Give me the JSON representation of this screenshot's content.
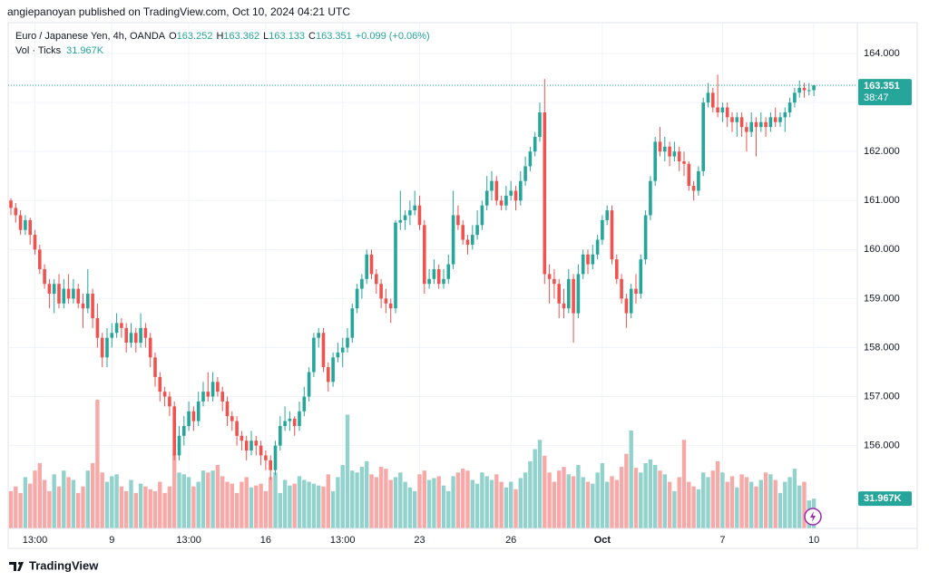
{
  "chart_data": {
    "type": "candlestick",
    "attribution": "angiepanoyan published on TradingView.com, Oct 10, 2024 04:21 UTC",
    "title": "Euro / Japanese Yen, 4h, OANDA",
    "ohlc_legend": [
      {
        "key": "O",
        "value": "163.252"
      },
      {
        "key": "H",
        "value": "163.362"
      },
      {
        "key": "L",
        "value": "163.133"
      },
      {
        "key": "C",
        "value": "163.351"
      }
    ],
    "change": "+0.099 (+0.06%)",
    "volume_title": "Vol · Ticks",
    "volume_legend": "31.967K",
    "price_tag": {
      "price": "163.351",
      "countdown": "38:47"
    },
    "volume_tag": "31.967K",
    "footer": "TradingView",
    "up_color": "#26a69a",
    "down_color": "#ef5350",
    "volume_up_color": "#92d2cc",
    "volume_down_color": "#f7a9a7",
    "grid": true,
    "ylim": [
      154.31,
      164.63
    ],
    "yticks": [
      {
        "value": 156,
        "label": "156.000"
      },
      {
        "value": 157,
        "label": "157.000"
      },
      {
        "value": 158,
        "label": "158.000"
      },
      {
        "value": 159,
        "label": "159.000"
      },
      {
        "value": 160,
        "label": "160.000"
      },
      {
        "value": 161,
        "label": "161.000"
      },
      {
        "value": 162,
        "label": "162.000"
      },
      {
        "value": 163,
        "label": "163.000"
      },
      {
        "value": 164,
        "label": "164.000"
      }
    ],
    "categories": [
      null,
      null,
      null,
      null,
      null,
      "13:00",
      null,
      null,
      null,
      null,
      null,
      null,
      null,
      null,
      null,
      null,
      null,
      null,
      null,
      null,
      null,
      "9",
      null,
      null,
      null,
      null,
      null,
      null,
      null,
      null,
      null,
      null,
      null,
      null,
      null,
      null,
      null,
      "13:00",
      null,
      null,
      null,
      null,
      null,
      null,
      null,
      null,
      null,
      null,
      null,
      null,
      null,
      null,
      null,
      "16",
      null,
      null,
      null,
      null,
      null,
      null,
      null,
      null,
      null,
      null,
      null,
      null,
      null,
      null,
      null,
      "13:00",
      null,
      null,
      null,
      null,
      null,
      null,
      null,
      null,
      null,
      null,
      null,
      null,
      null,
      null,
      null,
      "23",
      null,
      null,
      null,
      null,
      null,
      null,
      null,
      null,
      null,
      null,
      null,
      null,
      null,
      null,
      null,
      null,
      null,
      null,
      "26",
      null,
      null,
      null,
      null,
      null,
      null,
      null,
      null,
      null,
      null,
      null,
      null,
      null,
      null,
      null,
      null,
      null,
      null,
      "Oct",
      null,
      null,
      null,
      null,
      null,
      null,
      null,
      null,
      null,
      null,
      null,
      null,
      null,
      null,
      null,
      null,
      null,
      null,
      null,
      null,
      null,
      null,
      null,
      null,
      "7",
      null,
      null,
      null,
      null,
      null,
      null,
      null,
      null,
      null,
      null,
      null,
      null,
      null,
      null,
      null,
      null,
      null,
      null,
      "10"
    ],
    "candles": [
      [
        161.0,
        161.05,
        160.7,
        160.85
      ],
      [
        160.85,
        160.95,
        160.55,
        160.7
      ],
      [
        160.7,
        160.8,
        160.3,
        160.4
      ],
      [
        160.4,
        160.7,
        160.3,
        160.6
      ],
      [
        160.6,
        160.65,
        160.1,
        160.3
      ],
      [
        160.3,
        160.4,
        159.9,
        160.0
      ],
      [
        160.0,
        160.1,
        159.5,
        159.6
      ],
      [
        159.6,
        159.7,
        159.2,
        159.3
      ],
      [
        159.3,
        159.4,
        158.8,
        159.1
      ],
      [
        159.1,
        159.4,
        158.7,
        159.3
      ],
      [
        159.3,
        159.5,
        158.8,
        158.9
      ],
      [
        158.9,
        159.4,
        158.8,
        159.2
      ],
      [
        159.2,
        159.5,
        158.9,
        159.0
      ],
      [
        159.0,
        159.4,
        158.9,
        159.2
      ],
      [
        159.2,
        159.3,
        158.8,
        158.9
      ],
      [
        158.9,
        159.1,
        158.4,
        158.8
      ],
      [
        158.8,
        159.6,
        158.7,
        159.1
      ],
      [
        159.1,
        159.2,
        158.4,
        158.6
      ],
      [
        158.6,
        158.9,
        158.0,
        158.2
      ],
      [
        158.2,
        158.3,
        157.6,
        157.8
      ],
      [
        157.8,
        158.4,
        157.6,
        158.2
      ],
      [
        158.2,
        158.5,
        158.0,
        158.3
      ],
      [
        158.3,
        158.7,
        158.2,
        158.5
      ],
      [
        158.5,
        158.6,
        158.2,
        158.4
      ],
      [
        158.4,
        158.5,
        157.9,
        158.1
      ],
      [
        158.1,
        158.5,
        158.0,
        158.3
      ],
      [
        158.3,
        158.4,
        157.9,
        158.1
      ],
      [
        158.1,
        158.7,
        158.0,
        158.4
      ],
      [
        158.4,
        158.5,
        158.0,
        158.2
      ],
      [
        158.2,
        158.3,
        157.6,
        157.8
      ],
      [
        157.8,
        157.9,
        157.2,
        157.4
      ],
      [
        157.4,
        157.5,
        156.9,
        157.1
      ],
      [
        157.1,
        157.2,
        156.8,
        157.0
      ],
      [
        157.0,
        157.1,
        156.6,
        156.8
      ],
      [
        156.8,
        156.9,
        155.7,
        155.8
      ],
      [
        155.8,
        156.4,
        155.7,
        156.2
      ],
      [
        156.2,
        156.6,
        156.0,
        156.4
      ],
      [
        156.4,
        156.9,
        156.3,
        156.7
      ],
      [
        156.7,
        156.8,
        156.3,
        156.5
      ],
      [
        156.5,
        157.1,
        156.4,
        156.9
      ],
      [
        156.9,
        157.3,
        156.8,
        157.1
      ],
      [
        157.1,
        157.5,
        156.9,
        157.0
      ],
      [
        157.0,
        157.5,
        156.9,
        157.3
      ],
      [
        157.3,
        157.4,
        157.0,
        157.1
      ],
      [
        157.1,
        157.2,
        156.7,
        156.9
      ],
      [
        156.9,
        157.0,
        156.4,
        156.6
      ],
      [
        156.6,
        156.7,
        156.3,
        156.5
      ],
      [
        156.5,
        156.6,
        156.0,
        156.2
      ],
      [
        156.2,
        156.3,
        155.9,
        156.1
      ],
      [
        156.1,
        156.2,
        155.7,
        155.9
      ],
      [
        155.9,
        156.3,
        155.8,
        156.1
      ],
      [
        156.1,
        156.2,
        155.8,
        156.0
      ],
      [
        156.0,
        156.1,
        155.6,
        155.8
      ],
      [
        155.8,
        155.9,
        155.5,
        155.7
      ],
      [
        155.7,
        155.8,
        155.3,
        155.5
      ],
      [
        155.5,
        156.1,
        155.4,
        156.0
      ],
      [
        156.0,
        156.6,
        155.9,
        156.4
      ],
      [
        156.4,
        156.8,
        156.3,
        156.5
      ],
      [
        156.5,
        156.7,
        156.3,
        156.55
      ],
      [
        156.55,
        156.6,
        156.2,
        156.4
      ],
      [
        156.4,
        156.9,
        156.3,
        156.7
      ],
      [
        156.7,
        157.2,
        156.6,
        157.0
      ],
      [
        157.0,
        157.6,
        156.9,
        157.5
      ],
      [
        157.5,
        158.3,
        157.4,
        158.2
      ],
      [
        158.2,
        158.4,
        158.0,
        158.3
      ],
      [
        158.3,
        158.4,
        157.5,
        157.6
      ],
      [
        157.6,
        157.7,
        157.1,
        157.3
      ],
      [
        157.3,
        157.9,
        157.2,
        157.8
      ],
      [
        157.8,
        158.1,
        157.7,
        157.9
      ],
      [
        157.9,
        158.2,
        157.6,
        158.0
      ],
      [
        158.0,
        158.4,
        157.9,
        158.2
      ],
      [
        158.2,
        158.9,
        158.1,
        158.8
      ],
      [
        158.8,
        159.3,
        158.7,
        159.2
      ],
      [
        159.2,
        159.5,
        159.0,
        159.4
      ],
      [
        159.4,
        160.0,
        159.3,
        159.9
      ],
      [
        159.9,
        160.0,
        159.4,
        159.5
      ],
      [
        159.5,
        159.6,
        159.1,
        159.3
      ],
      [
        159.3,
        159.4,
        158.8,
        159.0
      ],
      [
        159.0,
        159.2,
        158.7,
        158.9
      ],
      [
        158.9,
        159.0,
        158.5,
        158.8
      ],
      [
        158.8,
        160.6,
        158.7,
        160.55
      ],
      [
        160.55,
        161.2,
        160.4,
        160.6
      ],
      [
        160.6,
        160.8,
        160.4,
        160.7
      ],
      [
        160.7,
        161.0,
        160.5,
        160.8
      ],
      [
        160.8,
        161.2,
        160.7,
        160.9
      ],
      [
        160.9,
        161.1,
        160.4,
        160.5
      ],
      [
        160.5,
        160.6,
        159.1,
        159.3
      ],
      [
        159.3,
        159.6,
        159.2,
        159.4
      ],
      [
        159.4,
        159.8,
        159.3,
        159.6
      ],
      [
        159.6,
        159.7,
        159.2,
        159.3
      ],
      [
        159.3,
        159.6,
        159.2,
        159.4
      ],
      [
        159.4,
        159.9,
        159.3,
        159.7
      ],
      [
        159.7,
        161.2,
        159.6,
        160.7
      ],
      [
        160.7,
        160.9,
        160.4,
        160.5
      ],
      [
        160.5,
        160.6,
        160.1,
        160.2
      ],
      [
        160.2,
        160.3,
        159.9,
        160.1
      ],
      [
        160.1,
        160.5,
        160.0,
        160.3
      ],
      [
        160.3,
        160.8,
        160.2,
        160.5
      ],
      [
        160.5,
        161.0,
        160.4,
        160.9
      ],
      [
        160.9,
        161.5,
        160.8,
        161.2
      ],
      [
        161.2,
        161.6,
        161.0,
        161.4
      ],
      [
        161.4,
        161.5,
        160.9,
        161.0
      ],
      [
        161.0,
        161.1,
        160.8,
        160.9
      ],
      [
        160.9,
        161.3,
        160.8,
        161.1
      ],
      [
        161.1,
        161.4,
        161.0,
        161.2
      ],
      [
        161.2,
        161.3,
        160.8,
        161.0
      ],
      [
        161.0,
        161.6,
        160.9,
        161.4
      ],
      [
        161.4,
        161.9,
        161.3,
        161.7
      ],
      [
        161.7,
        162.1,
        161.6,
        162.0
      ],
      [
        162.0,
        162.4,
        161.9,
        162.3
      ],
      [
        162.3,
        163.0,
        162.2,
        162.8
      ],
      [
        162.8,
        163.48,
        159.3,
        159.5
      ],
      [
        159.5,
        159.7,
        158.9,
        159.4
      ],
      [
        159.4,
        159.6,
        159.0,
        159.3
      ],
      [
        159.3,
        159.4,
        158.6,
        158.9
      ],
      [
        158.9,
        159.2,
        158.6,
        158.8
      ],
      [
        158.8,
        159.6,
        158.7,
        159.4
      ],
      [
        159.4,
        159.5,
        158.1,
        158.7
      ],
      [
        158.7,
        159.7,
        158.6,
        159.5
      ],
      [
        159.5,
        160.0,
        159.4,
        159.9
      ],
      [
        159.9,
        160.0,
        159.5,
        159.7
      ],
      [
        159.7,
        160.1,
        159.6,
        159.9
      ],
      [
        159.9,
        160.3,
        159.8,
        160.2
      ],
      [
        160.2,
        160.7,
        160.1,
        160.6
      ],
      [
        160.6,
        160.9,
        160.5,
        160.8
      ],
      [
        160.8,
        160.9,
        159.7,
        159.8
      ],
      [
        159.8,
        159.9,
        159.3,
        159.4
      ],
      [
        159.4,
        159.5,
        158.9,
        159.0
      ],
      [
        159.0,
        159.1,
        158.4,
        158.7
      ],
      [
        158.7,
        159.3,
        158.6,
        159.2
      ],
      [
        159.2,
        159.5,
        158.9,
        159.1
      ],
      [
        159.1,
        159.9,
        159.0,
        159.8
      ],
      [
        159.8,
        160.8,
        159.7,
        160.7
      ],
      [
        160.7,
        161.5,
        160.6,
        161.4
      ],
      [
        161.4,
        162.3,
        161.3,
        162.2
      ],
      [
        162.2,
        162.5,
        161.9,
        162.0
      ],
      [
        162.0,
        162.3,
        161.8,
        162.1
      ],
      [
        162.1,
        162.2,
        161.7,
        161.9
      ],
      [
        161.9,
        162.2,
        161.8,
        162.0
      ],
      [
        162.0,
        162.1,
        161.6,
        161.8
      ],
      [
        161.8,
        162.0,
        161.5,
        161.75
      ],
      [
        161.75,
        161.8,
        161.2,
        161.3
      ],
      [
        161.3,
        161.4,
        161.0,
        161.2
      ],
      [
        161.2,
        161.7,
        161.1,
        161.6
      ],
      [
        161.6,
        163.1,
        161.5,
        163.0
      ],
      [
        163.0,
        163.4,
        162.9,
        163.2
      ],
      [
        163.2,
        163.3,
        162.8,
        162.9
      ],
      [
        162.9,
        163.57,
        162.7,
        162.8
      ],
      [
        162.8,
        163.0,
        162.6,
        162.9
      ],
      [
        162.9,
        163.0,
        162.5,
        162.7
      ],
      [
        162.7,
        162.8,
        162.4,
        162.6
      ],
      [
        162.6,
        162.8,
        162.3,
        162.7
      ],
      [
        162.7,
        162.8,
        162.3,
        162.5
      ],
      [
        162.5,
        162.6,
        162.0,
        162.4
      ],
      [
        162.4,
        162.8,
        162.3,
        162.6
      ],
      [
        162.6,
        162.7,
        161.9,
        162.5
      ],
      [
        162.5,
        162.8,
        162.4,
        162.6
      ],
      [
        162.6,
        162.7,
        162.3,
        162.5
      ],
      [
        162.5,
        162.8,
        162.4,
        162.7
      ],
      [
        162.7,
        162.9,
        162.5,
        162.6
      ],
      [
        162.6,
        162.8,
        162.5,
        162.7
      ],
      [
        162.7,
        162.9,
        162.4,
        162.8
      ],
      [
        162.8,
        163.1,
        162.7,
        163.0
      ],
      [
        163.0,
        163.3,
        162.9,
        163.2
      ],
      [
        163.2,
        163.45,
        163.1,
        163.3
      ],
      [
        163.3,
        163.4,
        163.1,
        163.25
      ],
      [
        163.25,
        163.4,
        163.15,
        163.252
      ],
      [
        163.252,
        163.362,
        163.133,
        163.351
      ]
    ],
    "volume": [
      40,
      45,
      38,
      55,
      48,
      62,
      70,
      52,
      40,
      58,
      45,
      62,
      55,
      52,
      38,
      45,
      62,
      70,
      138,
      60,
      50,
      56,
      58,
      45,
      40,
      52,
      38,
      48,
      45,
      42,
      40,
      50,
      38,
      45,
      80,
      60,
      58,
      55,
      45,
      50,
      62,
      60,
      62,
      68,
      56,
      50,
      48,
      38,
      50,
      55,
      44,
      46,
      48,
      40,
      55,
      60,
      38,
      52,
      46,
      48,
      56,
      52,
      50,
      48,
      46,
      45,
      58,
      40,
      55,
      68,
      122,
      62,
      60,
      66,
      72,
      58,
      55,
      66,
      64,
      52,
      55,
      60,
      50,
      44,
      40,
      58,
      62,
      52,
      54,
      56,
      46,
      40,
      56,
      60,
      64,
      62,
      52,
      48,
      60,
      56,
      52,
      58,
      50,
      44,
      50,
      42,
      54,
      60,
      72,
      85,
      95,
      78,
      60,
      50,
      62,
      66,
      58,
      56,
      68,
      55,
      50,
      48,
      60,
      70,
      50,
      56,
      52,
      66,
      80,
      105,
      65,
      60,
      70,
      74,
      68,
      62,
      58,
      50,
      40,
      55,
      95,
      50,
      45,
      42,
      60,
      55,
      62,
      72,
      60,
      50,
      56,
      44,
      58,
      55,
      50,
      45,
      52,
      60,
      58,
      52,
      38,
      50,
      55,
      64,
      46,
      50,
      30,
      31.967
    ]
  }
}
